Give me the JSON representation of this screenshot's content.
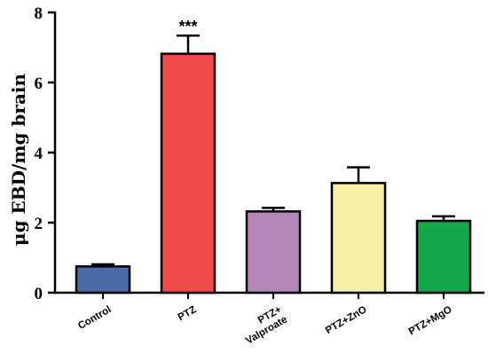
{
  "chart_data": {
    "type": "bar",
    "categories": [
      [
        "Control"
      ],
      [
        "PTZ"
      ],
      [
        "PTZ+",
        "Valproate"
      ],
      [
        "PTZ+ZnO"
      ],
      [
        "PTZ+MgO"
      ]
    ],
    "values": [
      0.75,
      6.82,
      2.32,
      3.13,
      2.05
    ],
    "errors": [
      0.06,
      0.52,
      0.1,
      0.45,
      0.13
    ],
    "colors": [
      "#4a6aa8",
      "#f04a4a",
      "#b486b8",
      "#f4f0a6",
      "#14a84a"
    ],
    "annotations": [
      "",
      "***",
      "",
      "",
      ""
    ],
    "ylabel": "μg EBD/mg brain",
    "xlabel": "",
    "ylim": [
      0,
      8
    ],
    "yticks": [
      0,
      2,
      4,
      6,
      8
    ],
    "grid": false
  }
}
